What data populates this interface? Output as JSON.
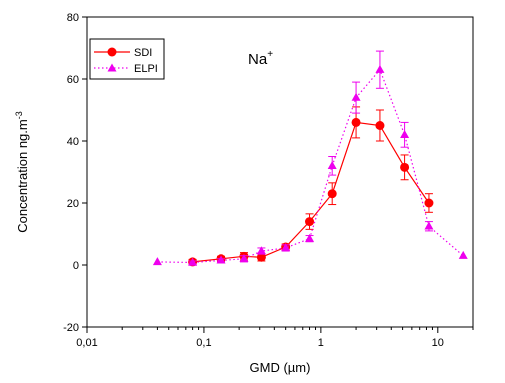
{
  "chart_data": {
    "type": "line",
    "x_scale": "log",
    "xlabel": "GMD (µm)",
    "ylabel": "Concentration ng.m",
    "ylabel_superscript": "-3",
    "xlim": [
      0.01,
      20
    ],
    "ylim": [
      -20,
      80
    ],
    "x_ticks": [
      {
        "value": 0.01,
        "label": "0,01"
      },
      {
        "value": 0.1,
        "label": "0,1"
      },
      {
        "value": 1,
        "label": "1"
      },
      {
        "value": 10,
        "label": "10"
      }
    ],
    "y_ticks": [
      -20,
      0,
      20,
      40,
      60,
      80
    ],
    "annotation": {
      "text": "Na",
      "superscript": "+"
    },
    "legend_position": "top-left",
    "series": [
      {
        "name": "SDI",
        "color": "#ff0000",
        "marker": "circle",
        "line_style": "solid",
        "x": [
          0.08,
          0.14,
          0.22,
          0.31,
          0.5,
          0.8,
          1.25,
          2.0,
          3.2,
          5.2,
          8.4
        ],
        "y": [
          1.0,
          2.0,
          2.8,
          2.5,
          5.8,
          14.0,
          23.0,
          46.0,
          45.0,
          31.5,
          20.0
        ],
        "err": [
          0.8,
          0.8,
          1.2,
          1.2,
          1.0,
          2.5,
          3.5,
          5.0,
          5.0,
          4.0,
          3.0
        ]
      },
      {
        "name": "ELPI",
        "color": "#ee00ee",
        "marker": "triangle",
        "line_style": "dotted",
        "x": [
          0.04,
          0.08,
          0.14,
          0.22,
          0.31,
          0.5,
          0.8,
          1.25,
          2.0,
          3.2,
          5.2,
          8.4,
          16.5
        ],
        "y": [
          1.0,
          0.8,
          1.5,
          2.0,
          4.5,
          5.5,
          8.5,
          32.0,
          54.0,
          63.0,
          42.0,
          12.5,
          3.0
        ],
        "err": [
          0.0,
          0.5,
          0.5,
          1.0,
          1.0,
          1.0,
          1.0,
          3.0,
          5.0,
          6.0,
          4.0,
          1.5,
          0.0
        ]
      }
    ]
  }
}
